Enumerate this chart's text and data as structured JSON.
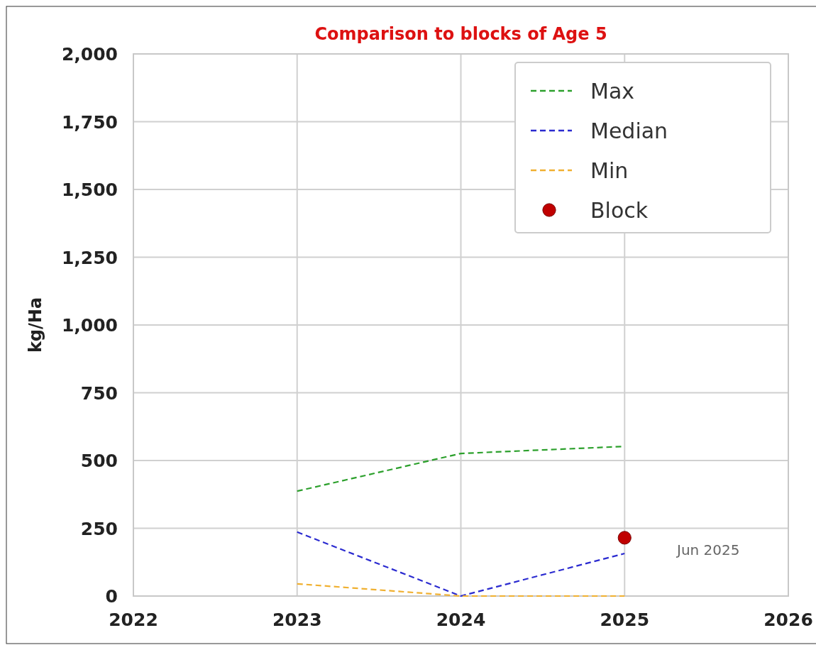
{
  "chart_data": {
    "type": "line",
    "title": "Comparison to blocks of Age 5",
    "ylabel": "kg/Ha",
    "x": [
      2023,
      2024,
      2025
    ],
    "series": [
      {
        "name": "Max",
        "color": "#2ca02c",
        "values": [
          387,
          526,
          552
        ],
        "line_style": "dashed"
      },
      {
        "name": "Median",
        "color": "#2b2bd0",
        "values": [
          236,
          0,
          157
        ],
        "line_style": "dashed"
      },
      {
        "name": "Min",
        "color": "#f0b030",
        "values": [
          45,
          0,
          0
        ],
        "line_style": "dashed"
      },
      {
        "name": "Block",
        "type": "scatter",
        "color": "#c00000",
        "x": [
          2025
        ],
        "values": [
          215
        ],
        "marker": "circle"
      }
    ],
    "annotations": [
      "Jun 2025"
    ],
    "xlim": [
      2022,
      2026
    ],
    "xticks": [
      2022,
      2023,
      2024,
      2025,
      2026
    ],
    "ylim": [
      0,
      2000
    ],
    "yticks": [
      0,
      {
        "value": 250,
        "label": "250"
      },
      {
        "value": 500,
        "label": "500"
      },
      {
        "value": 750,
        "label": "750"
      },
      {
        "value": 1000,
        "label": "1,000"
      },
      {
        "value": 1250,
        "label": "1,250"
      },
      {
        "value": 1500,
        "label": "1,500"
      },
      {
        "value": 1750,
        "label": "1,750"
      },
      {
        "value": 2000,
        "label": "2,000"
      }
    ],
    "grid": true,
    "legend": "top right"
  }
}
